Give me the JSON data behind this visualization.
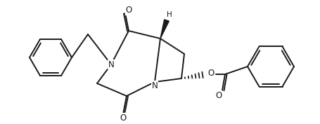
{
  "bg_color": "#ffffff",
  "line_color": "#1a1a1a",
  "line_width": 1.4,
  "figsize": [
    4.55,
    1.77
  ],
  "dpi": 100,
  "N1_label": "N",
  "N2_label": "N",
  "O_label": "O",
  "H_label": "H"
}
